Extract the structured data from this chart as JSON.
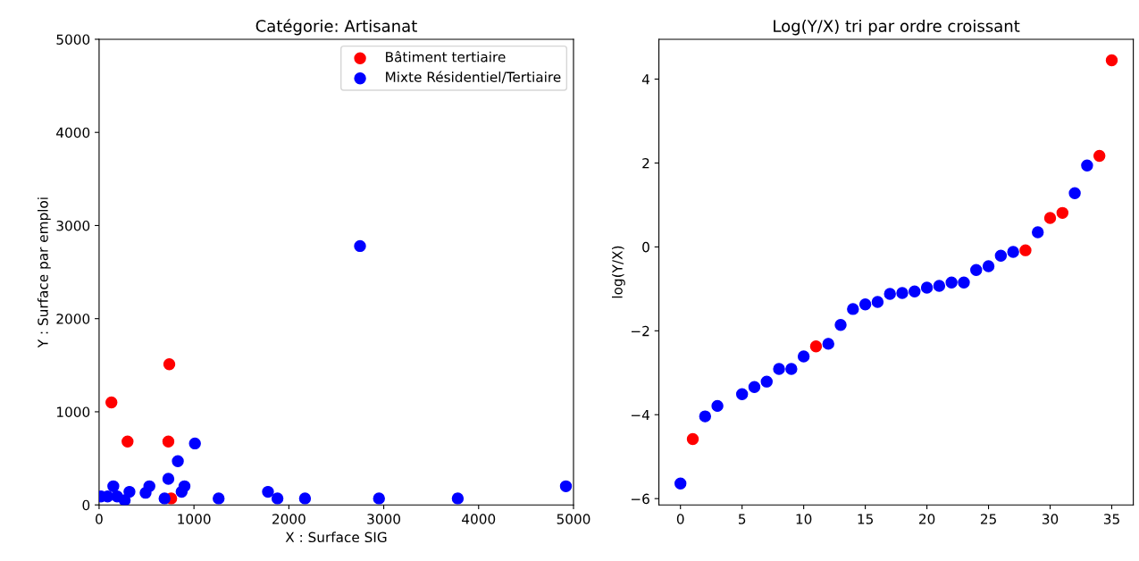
{
  "chart_data": [
    {
      "type": "scatter",
      "title": "Catégorie: Artisanat",
      "xlabel": "X : Surface SIG",
      "ylabel": "Y : Surface par emploi",
      "xlim": [
        0,
        5000
      ],
      "ylim": [
        0,
        5000
      ],
      "xticks": [
        0,
        1000,
        2000,
        3000,
        4000,
        5000
      ],
      "yticks": [
        0,
        1000,
        2000,
        3000,
        4000,
        5000
      ],
      "legend": "top right",
      "marker": "circle",
      "grid": false,
      "series": [
        {
          "name": "Bâtiment tertiaire",
          "color": "#ff0000",
          "x": [
            130,
            300,
            730,
            740,
            760
          ],
          "values": [
            1100,
            680,
            680,
            1510,
            70
          ]
        },
        {
          "name": "Mixte Résidentiel/Tertiaire",
          "color": "#0000ff",
          "x": [
            1010,
            830,
            730,
            150,
            90,
            190,
            270,
            320,
            490,
            530,
            690,
            870,
            900,
            1260,
            1780,
            1880,
            2170,
            2950,
            3780,
            4920,
            2750,
            20
          ],
          "values": [
            660,
            470,
            280,
            200,
            90,
            90,
            50,
            140,
            130,
            200,
            70,
            140,
            200,
            70,
            140,
            70,
            70,
            70,
            70,
            200,
            2780,
            90
          ]
        }
      ]
    },
    {
      "type": "scatter",
      "title": "Log(Y/X) tri par ordre croissant",
      "ylabel": "log(Y/X)",
      "xlim": [
        -1.75,
        36.75
      ],
      "ylim": [
        -6.15,
        4.95
      ],
      "xticks": [
        0,
        5,
        10,
        15,
        20,
        25,
        30,
        35
      ],
      "yticks": [
        {
          "value": -6,
          "label": "−6"
        },
        {
          "value": -4,
          "label": "−4"
        },
        {
          "value": -2,
          "label": "−2"
        },
        0,
        2,
        4
      ],
      "marker": "circle",
      "grid": false,
      "series": [
        {
          "color": "#ff0000",
          "x": [
            1,
            11,
            28,
            30,
            31,
            34,
            35
          ],
          "values": [
            -4.58,
            -2.37,
            -0.08,
            0.69,
            0.81,
            2.17,
            4.45
          ]
        },
        {
          "color": "#0000ff",
          "x": [
            0,
            2,
            3,
            5,
            6,
            7,
            8,
            9,
            10,
            12,
            13,
            14,
            15,
            16,
            17,
            18,
            19,
            20,
            21,
            22,
            23,
            24,
            25,
            26,
            27,
            29,
            32,
            33
          ],
          "values": [
            -5.64,
            -4.04,
            -3.79,
            -3.51,
            -3.34,
            -3.21,
            -2.91,
            -2.91,
            -2.61,
            -2.31,
            -1.86,
            -1.48,
            -1.37,
            -1.31,
            -1.12,
            -1.1,
            -1.06,
            -0.97,
            -0.93,
            -0.85,
            -0.85,
            -0.55,
            -0.46,
            -0.21,
            -0.12,
            0.35,
            1.28,
            1.94
          ]
        }
      ]
    }
  ]
}
